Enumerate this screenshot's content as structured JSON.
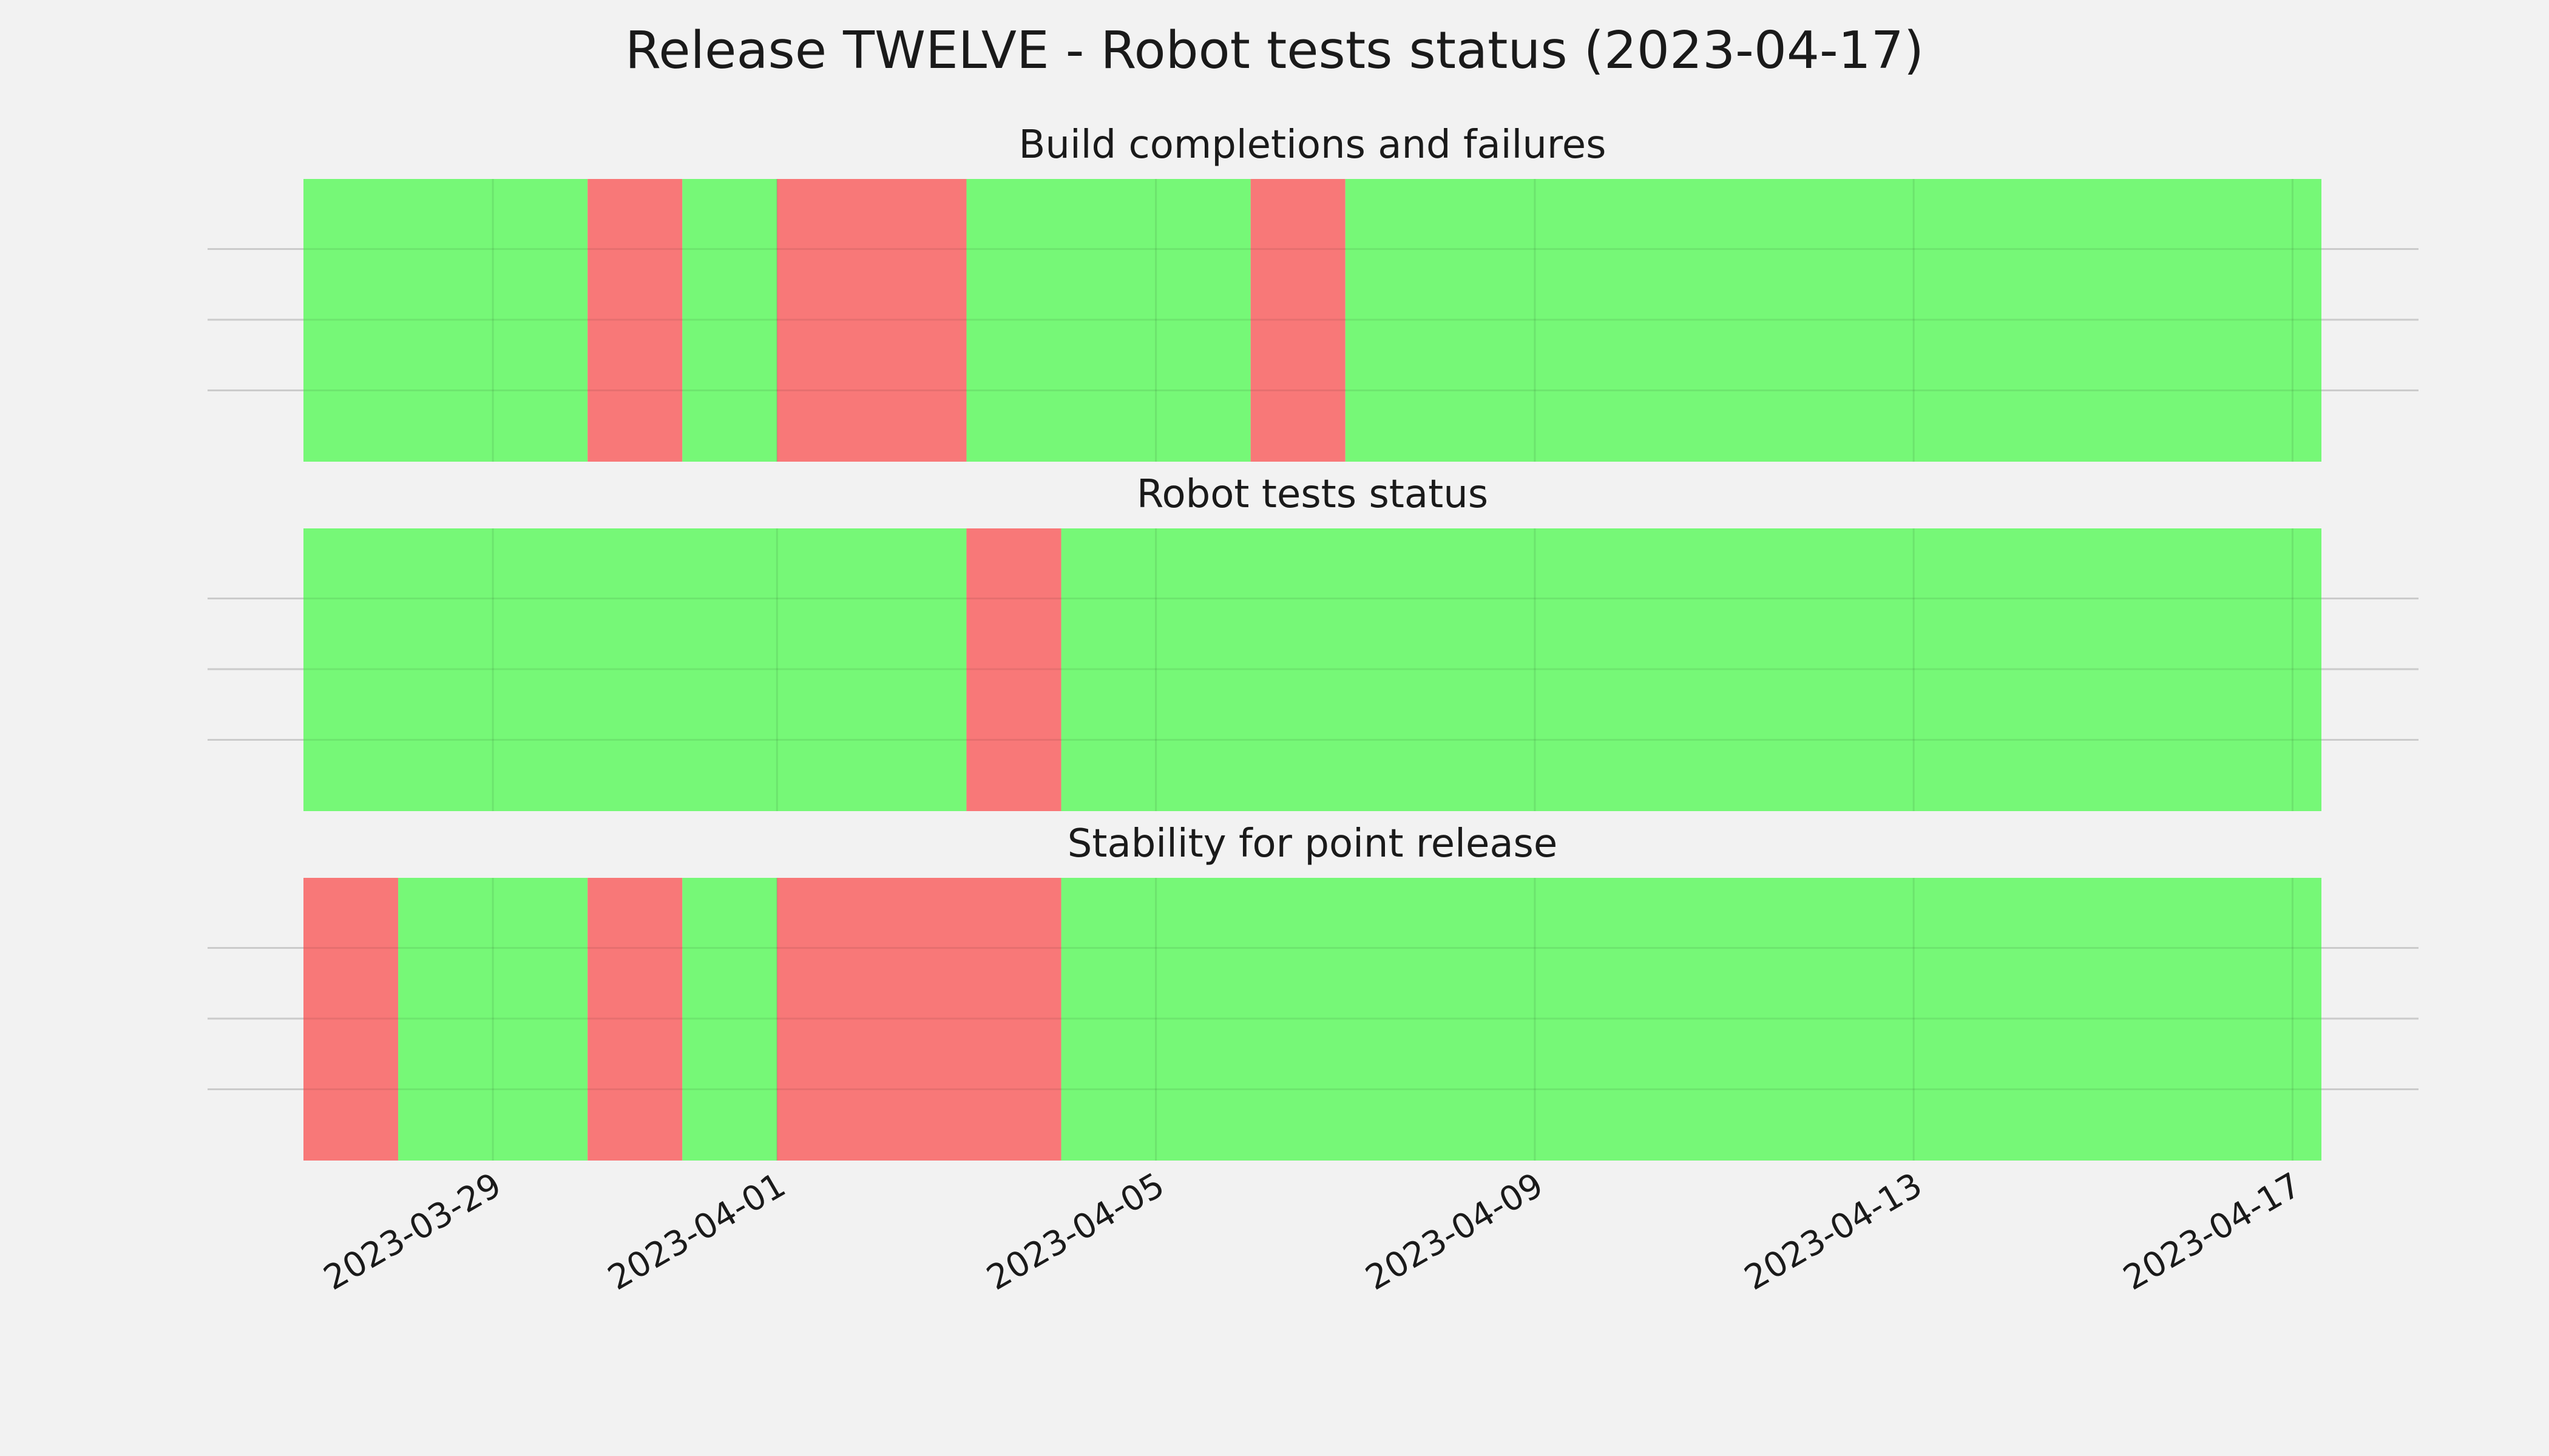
{
  "chart_data": {
    "type": "timeline",
    "title": "Release TWELVE - Robot tests status (2023-04-17)",
    "x_range": [
      "2023-03-27",
      "2023-04-17"
    ],
    "x_ticks": [
      "2023-03-29",
      "2023-04-01",
      "2023-04-05",
      "2023-04-09",
      "2023-04-13",
      "2023-04-17"
    ],
    "colors": {
      "pass": "#76f877",
      "fail": "#f87878",
      "background": "#f2f2f2"
    },
    "grid": true,
    "panels": [
      {
        "title": "Build completions and failures",
        "segments": [
          {
            "start": "2023-03-27",
            "end": "2023-03-30",
            "status": "pass"
          },
          {
            "start": "2023-03-30",
            "end": "2023-03-31",
            "status": "fail"
          },
          {
            "start": "2023-03-31",
            "end": "2023-04-01",
            "status": "pass"
          },
          {
            "start": "2023-04-01",
            "end": "2023-04-03",
            "status": "fail"
          },
          {
            "start": "2023-04-03",
            "end": "2023-04-06",
            "status": "pass"
          },
          {
            "start": "2023-04-06",
            "end": "2023-04-07",
            "status": "fail"
          },
          {
            "start": "2023-04-07",
            "end": "2023-04-17",
            "status": "pass"
          }
        ]
      },
      {
        "title": "Robot tests status",
        "segments": [
          {
            "start": "2023-03-27",
            "end": "2023-04-03",
            "status": "pass"
          },
          {
            "start": "2023-04-03",
            "end": "2023-04-04",
            "status": "fail"
          },
          {
            "start": "2023-04-04",
            "end": "2023-04-17",
            "status": "pass"
          }
        ]
      },
      {
        "title": "Stability for point release",
        "segments": [
          {
            "start": "2023-03-27",
            "end": "2023-03-28",
            "status": "fail"
          },
          {
            "start": "2023-03-28",
            "end": "2023-03-30",
            "status": "pass"
          },
          {
            "start": "2023-03-30",
            "end": "2023-03-31",
            "status": "fail"
          },
          {
            "start": "2023-03-31",
            "end": "2023-04-01",
            "status": "pass"
          },
          {
            "start": "2023-04-01",
            "end": "2023-04-04",
            "status": "fail"
          },
          {
            "start": "2023-04-04",
            "end": "2023-04-17",
            "status": "pass"
          }
        ]
      }
    ]
  }
}
